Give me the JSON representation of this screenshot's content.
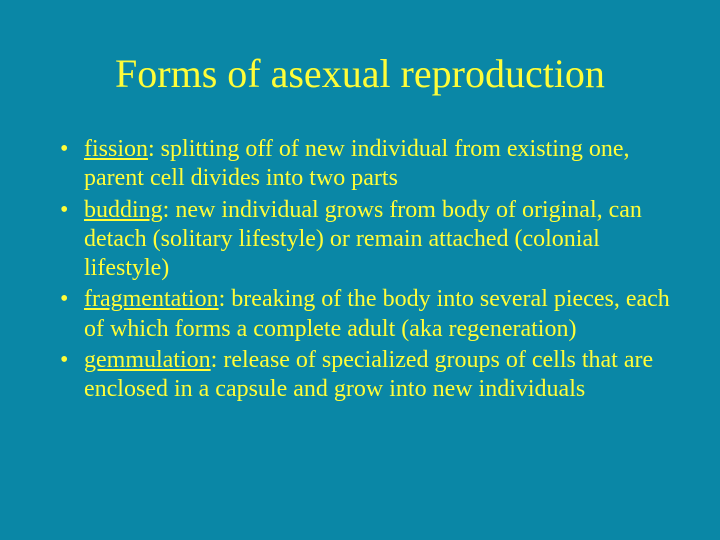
{
  "background_color": "#0a87a6",
  "text_color": "#fffd38",
  "font_family": "Times New Roman",
  "title": "Forms of asexual reproduction",
  "title_fontsize": 40,
  "body_fontsize": 24,
  "bullets": [
    {
      "term": "fission",
      "desc": ": splitting off of new individual from existing one, parent cell divides into two parts"
    },
    {
      "term": "budding",
      "desc": ": new individual grows from body of original, can detach (solitary lifestyle) or remain attached (colonial lifestyle)"
    },
    {
      "term": "fragmentation",
      "desc": ": breaking of the body into several pieces, each of which forms a complete adult (aka regeneration)"
    },
    {
      "term": "gemmulation",
      "desc": ": release of specialized groups of cells that are enclosed in a capsule and grow into new individuals"
    }
  ]
}
